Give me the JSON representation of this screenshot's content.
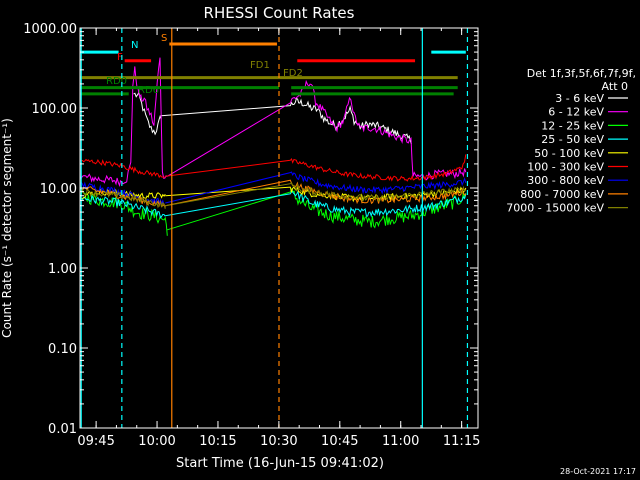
{
  "chart_data": {
    "type": "line",
    "title": "RHESSI Count Rates",
    "xlabel": "Start Time (16-Jun-15 09:41:02)",
    "ylabel": "Count Rate (s⁻¹ detector segment⁻¹)",
    "yscale": "log",
    "ylim": [
      0.01,
      1000
    ],
    "xlim_minutes": [
      0,
      98
    ],
    "x_ticks": [
      {
        "label": "09:45",
        "t": 3.97
      },
      {
        "label": "10:00",
        "t": 18.97
      },
      {
        "label": "10:15",
        "t": 33.97
      },
      {
        "label": "10:30",
        "t": 48.97
      },
      {
        "label": "10:45",
        "t": 63.97
      },
      {
        "label": "11:00",
        "t": 78.97
      },
      {
        "label": "11:15",
        "t": 93.97
      }
    ],
    "y_ticks": [
      {
        "label": "1000.00",
        "v": 1000
      },
      {
        "label": "100.00",
        "v": 100
      },
      {
        "label": "10.00",
        "v": 10
      },
      {
        "label": "1.00",
        "v": 1
      },
      {
        "label": "0.10",
        "v": 0.1
      },
      {
        "label": "0.01",
        "v": 0.01
      }
    ],
    "legend": {
      "header1": "Det 1f,3f,5f,6f,7f,9f,",
      "header2": "Att 0",
      "placement": "right"
    },
    "series": [
      {
        "name": "3 - 6 keV",
        "color": "#ffffff",
        "noise": 0.05,
        "points": [
          [
            13.2,
            150
          ],
          [
            14.5,
            140
          ],
          [
            15.5,
            100
          ],
          [
            16.5,
            70
          ],
          [
            17.5,
            55
          ],
          [
            18.5,
            50
          ],
          [
            19.2,
            60
          ],
          [
            20,
            80
          ],
          [
            51.5,
            105
          ],
          [
            53,
            120
          ],
          [
            55,
            115
          ],
          [
            57,
            100
          ],
          [
            58.5,
            95
          ],
          [
            60,
            75
          ],
          [
            61.5,
            65
          ],
          [
            63,
            60
          ],
          [
            65,
            75
          ],
          [
            66.5,
            95
          ],
          [
            67.5,
            70
          ],
          [
            69,
            58
          ],
          [
            71,
            63
          ],
          [
            73,
            60
          ],
          [
            75,
            55
          ],
          [
            77,
            50
          ],
          [
            79,
            45
          ],
          [
            80.5,
            42
          ],
          [
            81.6,
            40
          ]
        ]
      },
      {
        "name": "6 - 12 keV",
        "color": "#ff00ff",
        "noise": 0.05,
        "points": [
          [
            0,
            14
          ],
          [
            4,
            13
          ],
          [
            8,
            12.5
          ],
          [
            10,
            12
          ],
          [
            11.5,
            13
          ],
          [
            12.5,
            20
          ],
          [
            13,
            200
          ],
          [
            13.5,
            300
          ],
          [
            14.3,
            160
          ],
          [
            15,
            130
          ],
          [
            15.8,
            130
          ],
          [
            16.5,
            100
          ],
          [
            17.5,
            80
          ],
          [
            18.2,
            60
          ],
          [
            19,
            200
          ],
          [
            19.7,
            450
          ],
          [
            20.3,
            15
          ],
          [
            21.5,
            14
          ],
          [
            51.5,
            115
          ],
          [
            52.5,
            130
          ],
          [
            54.5,
            150
          ],
          [
            56,
            210
          ],
          [
            57,
            200
          ],
          [
            58,
            120
          ],
          [
            60,
            90
          ],
          [
            61.5,
            70
          ],
          [
            63,
            55
          ],
          [
            65,
            70
          ],
          [
            66,
            110
          ],
          [
            66.7,
            135
          ],
          [
            67.5,
            80
          ],
          [
            69,
            55
          ],
          [
            71,
            57
          ],
          [
            73,
            55
          ],
          [
            75,
            50
          ],
          [
            77,
            45
          ],
          [
            79,
            42
          ],
          [
            80.5,
            40
          ],
          [
            81.5,
            38
          ],
          [
            82,
            14
          ],
          [
            85,
            14
          ],
          [
            88,
            15
          ],
          [
            92,
            15
          ],
          [
            95,
            16
          ]
        ]
      },
      {
        "name": "12 - 25 keV",
        "color": "#00ff00",
        "noise": 0.08,
        "points": [
          [
            0,
            8
          ],
          [
            5,
            7
          ],
          [
            10,
            6.5
          ],
          [
            14,
            5
          ],
          [
            18,
            4.5
          ],
          [
            21,
            4
          ],
          [
            21.5,
            3
          ],
          [
            51.5,
            9
          ],
          [
            54,
            7
          ],
          [
            57,
            5.5
          ],
          [
            62,
            4.5
          ],
          [
            67,
            4
          ],
          [
            72,
            3.8
          ],
          [
            77,
            4.2
          ],
          [
            82,
            4.5
          ],
          [
            87,
            5.5
          ],
          [
            92,
            6.5
          ],
          [
            95,
            8
          ]
        ]
      },
      {
        "name": "25 - 50 keV",
        "color": "#00ffff",
        "noise": 0.05,
        "points": [
          [
            0,
            7.5
          ],
          [
            5,
            7
          ],
          [
            10,
            6.5
          ],
          [
            15,
            5.5
          ],
          [
            21,
            4.5
          ],
          [
            51.5,
            9.5
          ],
          [
            54,
            8
          ],
          [
            57,
            6.5
          ],
          [
            62,
            5.5
          ],
          [
            67,
            5
          ],
          [
            72,
            5
          ],
          [
            77,
            5.2
          ],
          [
            82,
            5.5
          ],
          [
            87,
            6
          ],
          [
            92,
            7
          ],
          [
            95,
            8
          ]
        ]
      },
      {
        "name": "50 - 100 keV",
        "color": "#ffff00",
        "noise": 0.04,
        "points": [
          [
            0,
            8
          ],
          [
            5,
            9
          ],
          [
            10,
            8.5
          ],
          [
            15,
            8
          ],
          [
            21,
            8
          ],
          [
            51.5,
            10
          ],
          [
            57,
            8.5
          ],
          [
            62,
            8
          ],
          [
            67,
            7.5
          ],
          [
            72,
            7.5
          ],
          [
            77,
            7.8
          ],
          [
            82,
            8
          ],
          [
            87,
            8.5
          ],
          [
            92,
            9
          ],
          [
            95,
            9.5
          ]
        ]
      },
      {
        "name": "100 - 300 keV",
        "color": "#ff0000",
        "noise": 0.03,
        "points": [
          [
            0,
            22
          ],
          [
            5,
            21
          ],
          [
            10,
            19
          ],
          [
            15,
            16
          ],
          [
            21,
            14
          ],
          [
            51.5,
            22
          ],
          [
            55,
            20
          ],
          [
            60,
            17
          ],
          [
            65,
            15
          ],
          [
            70,
            14
          ],
          [
            75,
            13.5
          ],
          [
            80,
            13
          ],
          [
            85,
            13.5
          ],
          [
            90,
            15
          ],
          [
            94,
            18
          ],
          [
            95,
            25
          ]
        ]
      },
      {
        "name": "300 - 800 keV",
        "color": "#0000ff",
        "noise": 0.04,
        "points": [
          [
            0,
            11
          ],
          [
            5,
            10
          ],
          [
            10,
            9
          ],
          [
            15,
            7.5
          ],
          [
            21,
            6.5
          ],
          [
            51.5,
            15
          ],
          [
            55,
            13
          ],
          [
            60,
            11
          ],
          [
            65,
            10
          ],
          [
            70,
            9.5
          ],
          [
            75,
            9.5
          ],
          [
            80,
            10
          ],
          [
            85,
            10.5
          ],
          [
            90,
            11
          ],
          [
            95,
            12
          ]
        ]
      },
      {
        "name": "800 - 7000 keV",
        "color": "#ff8000",
        "noise": 0.04,
        "points": [
          [
            0,
            10
          ],
          [
            5,
            9
          ],
          [
            10,
            8
          ],
          [
            15,
            7
          ],
          [
            21,
            6
          ],
          [
            51.5,
            12
          ],
          [
            55,
            10
          ],
          [
            60,
            8.5
          ],
          [
            65,
            7.5
          ],
          [
            70,
            7
          ],
          [
            75,
            7
          ],
          [
            80,
            7.2
          ],
          [
            85,
            7.5
          ],
          [
            90,
            8
          ],
          [
            95,
            9
          ]
        ]
      },
      {
        "name": "7000 - 15000 keV",
        "color": "#808000",
        "noise": 0.04,
        "points": [
          [
            0,
            9
          ],
          [
            5,
            8.5
          ],
          [
            10,
            8
          ],
          [
            15,
            7
          ],
          [
            21,
            6
          ],
          [
            51.5,
            11
          ],
          [
            55,
            9.5
          ],
          [
            60,
            8.5
          ],
          [
            65,
            8
          ],
          [
            70,
            7.5
          ],
          [
            75,
            7.5
          ],
          [
            80,
            8
          ],
          [
            85,
            8.5
          ],
          [
            90,
            9
          ],
          [
            95,
            9.5
          ]
        ]
      }
    ],
    "bars": [
      {
        "label": "N",
        "color": "#00ffff",
        "y": 500,
        "segments": [
          [
            0,
            9.5
          ],
          [
            86.5,
            95
          ]
        ]
      },
      {
        "label": "S",
        "color": "#ff8000",
        "y": 630,
        "segments": [
          [
            22,
            48.5
          ]
        ]
      },
      {
        "label": "F",
        "color": "#ff0000",
        "y": 390,
        "segments": [
          [
            11,
            17.5
          ],
          [
            53.5,
            82.5
          ]
        ]
      },
      {
        "label": "FD1",
        "color": "#808000",
        "y": 240,
        "segments": [
          [
            0,
            93
          ]
        ]
      },
      {
        "label": "FD2",
        "color": "#808000",
        "y": 205,
        "segments": []
      },
      {
        "label": "RD0",
        "color": "#008000",
        "y": 180,
        "segments": [
          [
            0,
            49
          ],
          [
            52,
            93
          ]
        ]
      },
      {
        "label": "RD6",
        "color": "#008000",
        "y": 150,
        "segments": [
          [
            0,
            12
          ],
          [
            52,
            92
          ]
        ]
      }
    ],
    "vlines": [
      {
        "t": 0.3,
        "color": "#00ffff",
        "dash": false
      },
      {
        "t": 10.3,
        "color": "#00ffff",
        "dash": true
      },
      {
        "t": 22.6,
        "color": "#ff8000",
        "dash": false
      },
      {
        "t": 49.0,
        "color": "#ff8000",
        "dash": true
      },
      {
        "t": 84.3,
        "color": "#00ffff",
        "dash": false
      },
      {
        "t": 95.4,
        "color": "#00ffff",
        "dash": true
      }
    ],
    "date_stamp": "28-Oct-2021 17:17",
    "grid": false
  }
}
